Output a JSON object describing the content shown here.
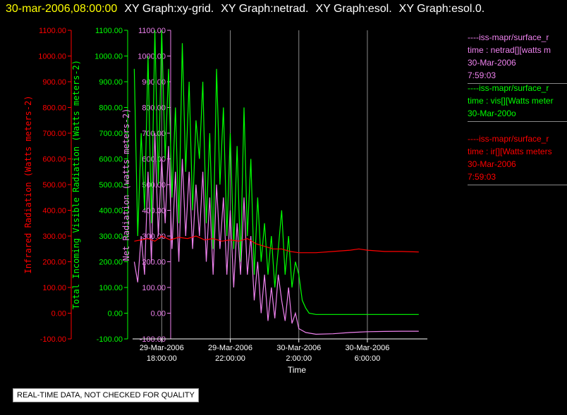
{
  "header": {
    "date": "30-mar-2006,08:00:00",
    "graphs": [
      "XY Graph:xy-grid.",
      "XY Graph:netrad.",
      "XY Graph:esol.",
      "XY Graph:esol.0."
    ]
  },
  "colors": {
    "infrared": "#ff0000",
    "visible": "#00ff00",
    "net": "#ee82ee",
    "grid": "#888888",
    "axis": "#ffffff"
  },
  "legend": [
    {
      "lines": [
        "----iss-mapr/surface_r",
        "time : netrad[][watts m",
        "30-Mar-2006",
        "7:59:03"
      ],
      "color": "#ee82ee"
    },
    {
      "lines": [
        "----iss-mapr/surface_r",
        "time : vis[][Watts meter",
        "30-Mar-200o"
      ],
      "color": "#00ff00"
    },
    {
      "lines": [
        "----iss-mapr/surface_r",
        "time : ir[][Watts meters",
        "30-Mar-2006",
        "7:59:03"
      ],
      "color": "#ff0000"
    }
  ],
  "note": "REAL-TIME DATA, NOT CHECKED FOR QUALITY",
  "chart_data": {
    "type": "line",
    "xlabel": "Time",
    "x_ticks": [
      {
        "hours": 18,
        "line1": "29-Mar-2006",
        "line2": "18:00:00"
      },
      {
        "hours": 22,
        "line1": "29-Mar-2006",
        "line2": "22:00:00"
      },
      {
        "hours": 26,
        "line1": "30-Mar-2006",
        "line2": "2:00:00"
      },
      {
        "hours": 30,
        "line1": "30-Mar-2006",
        "line2": "6:00:00"
      }
    ],
    "xlim_hours": [
      16.3,
      33.5
    ],
    "ylim": [
      -100,
      1100
    ],
    "y_ticks": [
      "1100.00",
      "1000.00",
      "900.00",
      "800.00",
      "700.00",
      "600.00",
      "500.00",
      "400.00",
      "300.00",
      "200.00",
      "100.00",
      "0.00",
      "-100.00"
    ],
    "y_axes": [
      {
        "label": "Infrared Radiation (Watts meters-2)",
        "color": "#ff0000"
      },
      {
        "label": "Total Incoming Visible Radiation (Watts meters-2)",
        "color": "#00ff00"
      },
      {
        "label": "Net Radiation (watts meters-2)",
        "color": "#ee82ee"
      }
    ],
    "series": [
      {
        "key": "infrared",
        "color": "#ff0000",
        "points": [
          [
            16.4,
            280
          ],
          [
            16.8,
            285
          ],
          [
            17.2,
            290
          ],
          [
            17.6,
            280
          ],
          [
            18,
            300
          ],
          [
            18.5,
            285
          ],
          [
            19,
            295
          ],
          [
            19.5,
            290
          ],
          [
            20,
            300
          ],
          [
            20.5,
            285
          ],
          [
            21,
            290
          ],
          [
            21.5,
            280
          ],
          [
            22,
            285
          ],
          [
            22.5,
            280
          ],
          [
            23,
            290
          ],
          [
            23.5,
            270
          ],
          [
            24,
            260
          ],
          [
            24.5,
            250
          ],
          [
            25,
            250
          ],
          [
            25.5,
            240
          ],
          [
            26,
            235
          ],
          [
            26.5,
            235
          ],
          [
            27,
            235
          ],
          [
            28,
            240
          ],
          [
            29,
            245
          ],
          [
            29.5,
            250
          ],
          [
            30,
            245
          ],
          [
            31,
            240
          ],
          [
            32,
            240
          ],
          [
            33,
            238
          ]
        ]
      },
      {
        "key": "visible",
        "color": "#00ff00",
        "points": [
          [
            16.4,
            950
          ],
          [
            16.6,
            300
          ],
          [
            16.8,
            700
          ],
          [
            17,
            400
          ],
          [
            17.2,
            1000
          ],
          [
            17.4,
            350
          ],
          [
            17.6,
            1100
          ],
          [
            17.8,
            500
          ],
          [
            18,
            1100
          ],
          [
            18.2,
            600
          ],
          [
            18.4,
            950
          ],
          [
            18.6,
            450
          ],
          [
            18.8,
            800
          ],
          [
            19,
            350
          ],
          [
            19.2,
            1050
          ],
          [
            19.4,
            550
          ],
          [
            19.6,
            900
          ],
          [
            19.8,
            400
          ],
          [
            20,
            750
          ],
          [
            20.2,
            600
          ],
          [
            20.4,
            900
          ],
          [
            20.6,
            350
          ],
          [
            20.8,
            700
          ],
          [
            21,
            250
          ],
          [
            21.2,
            950
          ],
          [
            21.4,
            500
          ],
          [
            21.6,
            800
          ],
          [
            21.8,
            300
          ],
          [
            22,
            700
          ],
          [
            22.2,
            250
          ],
          [
            22.4,
            650
          ],
          [
            22.6,
            200
          ],
          [
            22.8,
            800
          ],
          [
            23,
            300
          ],
          [
            23.2,
            600
          ],
          [
            23.4,
            150
          ],
          [
            23.6,
            450
          ],
          [
            23.8,
            200
          ],
          [
            24,
            350
          ],
          [
            24.2,
            150
          ],
          [
            24.4,
            300
          ],
          [
            24.6,
            100
          ],
          [
            24.8,
            250
          ],
          [
            25,
            400
          ],
          [
            25.2,
            150
          ],
          [
            25.4,
            300
          ],
          [
            25.6,
            100
          ],
          [
            25.8,
            200
          ],
          [
            26,
            150
          ],
          [
            26.2,
            50
          ],
          [
            26.4,
            20
          ],
          [
            26.6,
            0
          ],
          [
            27,
            -5
          ],
          [
            28,
            -5
          ],
          [
            29,
            -5
          ],
          [
            30,
            -5
          ],
          [
            31,
            -5
          ],
          [
            32,
            -5
          ],
          [
            33,
            -5
          ]
        ]
      },
      {
        "key": "net",
        "color": "#ee82ee",
        "points": [
          [
            16.4,
            200
          ],
          [
            16.6,
            120
          ],
          [
            16.8,
            300
          ],
          [
            17,
            150
          ],
          [
            17.2,
            550
          ],
          [
            17.4,
            200
          ],
          [
            17.6,
            700
          ],
          [
            17.8,
            300
          ],
          [
            18,
            600
          ],
          [
            18.2,
            350
          ],
          [
            18.4,
            650
          ],
          [
            18.6,
            250
          ],
          [
            18.8,
            550
          ],
          [
            19,
            200
          ],
          [
            19.2,
            600
          ],
          [
            19.4,
            300
          ],
          [
            19.6,
            550
          ],
          [
            19.8,
            250
          ],
          [
            20,
            500
          ],
          [
            20.2,
            300
          ],
          [
            20.4,
            550
          ],
          [
            20.6,
            200
          ],
          [
            20.8,
            450
          ],
          [
            21,
            150
          ],
          [
            21.2,
            500
          ],
          [
            21.4,
            250
          ],
          [
            21.6,
            450
          ],
          [
            21.8,
            150
          ],
          [
            22,
            400
          ],
          [
            22.2,
            100
          ],
          [
            22.4,
            350
          ],
          [
            22.6,
            150
          ],
          [
            22.8,
            450
          ],
          [
            23,
            150
          ],
          [
            23.2,
            300
          ],
          [
            23.4,
            50
          ],
          [
            23.6,
            200
          ],
          [
            23.8,
            0
          ],
          [
            24,
            150
          ],
          [
            24.2,
            -30
          ],
          [
            24.4,
            100
          ],
          [
            24.6,
            -20
          ],
          [
            24.8,
            150
          ],
          [
            25,
            50
          ],
          [
            25.2,
            -30
          ],
          [
            25.4,
            100
          ],
          [
            25.6,
            -40
          ],
          [
            25.8,
            0
          ],
          [
            26,
            -60
          ],
          [
            26.4,
            -75
          ],
          [
            27,
            -82
          ],
          [
            28,
            -80
          ],
          [
            29,
            -75
          ],
          [
            30,
            -72
          ],
          [
            31,
            -71
          ],
          [
            32,
            -70
          ],
          [
            33,
            -70
          ]
        ]
      }
    ]
  }
}
